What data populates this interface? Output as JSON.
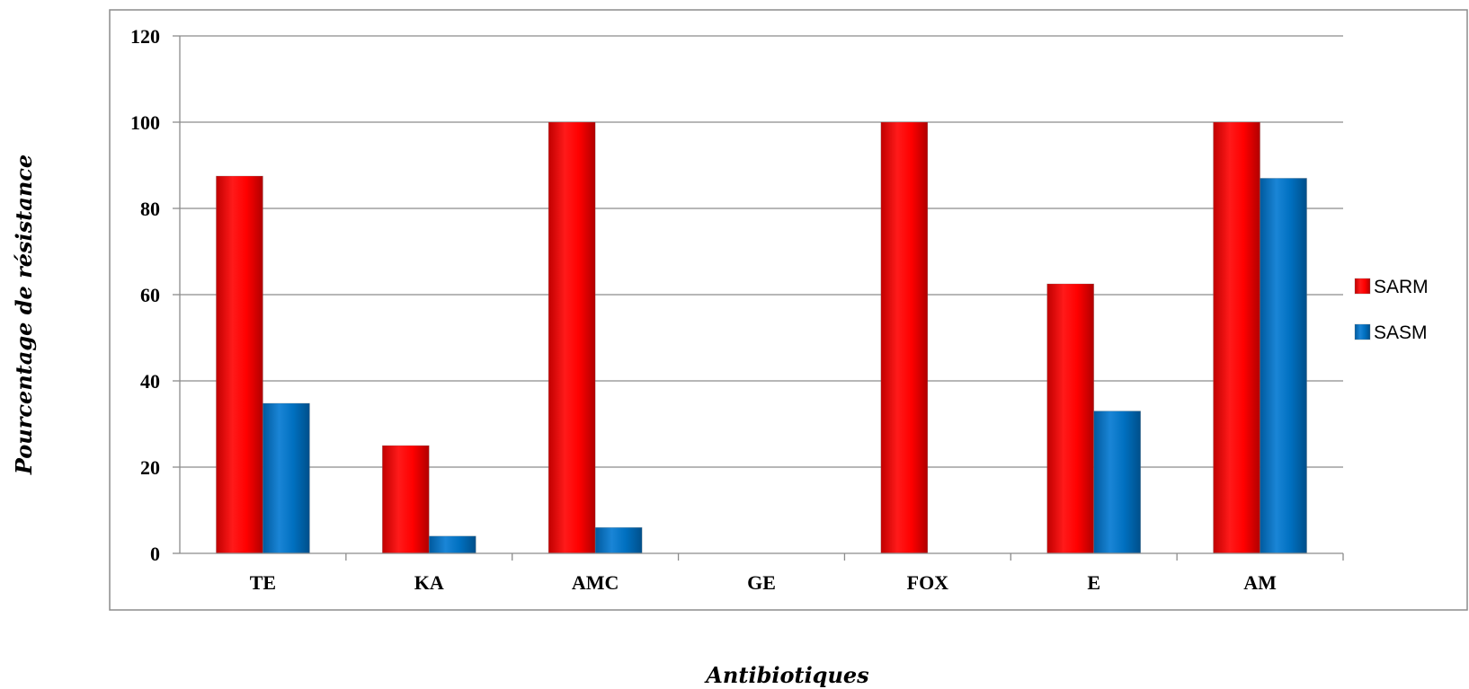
{
  "chart_data": {
    "type": "bar",
    "categories": [
      "TE",
      "KA",
      "AMC",
      "GE",
      "FOX",
      "E",
      "AM"
    ],
    "series": [
      {
        "name": "SARM",
        "values": [
          87.5,
          25,
          100,
          0,
          100,
          62.5,
          100
        ]
      },
      {
        "name": "SASM",
        "values": [
          34.8,
          4,
          6,
          0,
          0,
          33,
          87
        ]
      }
    ],
    "xlabel": "Antibiotiques",
    "ylabel": "Pourcentage de résistance",
    "ylim": [
      0,
      120
    ],
    "yticks": [
      "0",
      "20",
      "40",
      "60",
      "80",
      "100",
      "120"
    ],
    "grid": true,
    "legend": "right",
    "colors": {
      "SARM": "#ff0000",
      "SASM": "#0070c0"
    }
  }
}
